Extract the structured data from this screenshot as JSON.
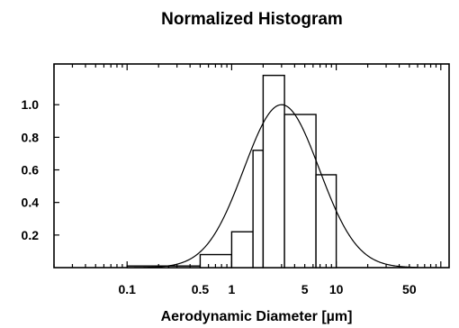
{
  "chart_data": {
    "type": "bar",
    "title": "Normalized Histogram",
    "xlabel": "Aerodynamic Diameter [µm]",
    "ylabel": "",
    "x_scale": "log",
    "xlim": [
      0.02,
      120
    ],
    "ylim": [
      0,
      1.25
    ],
    "grid": false,
    "x_tick_labels": [
      {
        "value": 0.1,
        "label": "0.1"
      },
      {
        "value": 0.5,
        "label": "0.5"
      },
      {
        "value": 1,
        "label": "1"
      },
      {
        "value": 5,
        "label": "5"
      },
      {
        "value": 10,
        "label": "10"
      },
      {
        "value": 50,
        "label": "50"
      }
    ],
    "y_tick_labels": [
      {
        "value": 0.2,
        "label": "0.2"
      },
      {
        "value": 0.4,
        "label": "0.4"
      },
      {
        "value": 0.6,
        "label": "0.6"
      },
      {
        "value": 0.8,
        "label": "0.8"
      },
      {
        "value": 1.0,
        "label": "1.0"
      }
    ],
    "bins": [
      {
        "x0": 0.1,
        "x1": 0.25,
        "value": 0.01
      },
      {
        "x0": 0.25,
        "x1": 0.5,
        "value": 0.01
      },
      {
        "x0": 0.5,
        "x1": 1.0,
        "value": 0.08
      },
      {
        "x0": 1.0,
        "x1": 1.6,
        "value": 0.22
      },
      {
        "x0": 1.6,
        "x1": 2.0,
        "value": 0.72
      },
      {
        "x0": 2.0,
        "x1": 3.2,
        "value": 1.18
      },
      {
        "x0": 3.2,
        "x1": 6.4,
        "value": 0.94
      },
      {
        "x0": 6.4,
        "x1": 10.0,
        "value": 0.57
      }
    ],
    "fit_curve": {
      "type": "lognormal",
      "peak_x": 3.0,
      "peak_y": 1.0,
      "sigma_log10": 0.36
    }
  }
}
